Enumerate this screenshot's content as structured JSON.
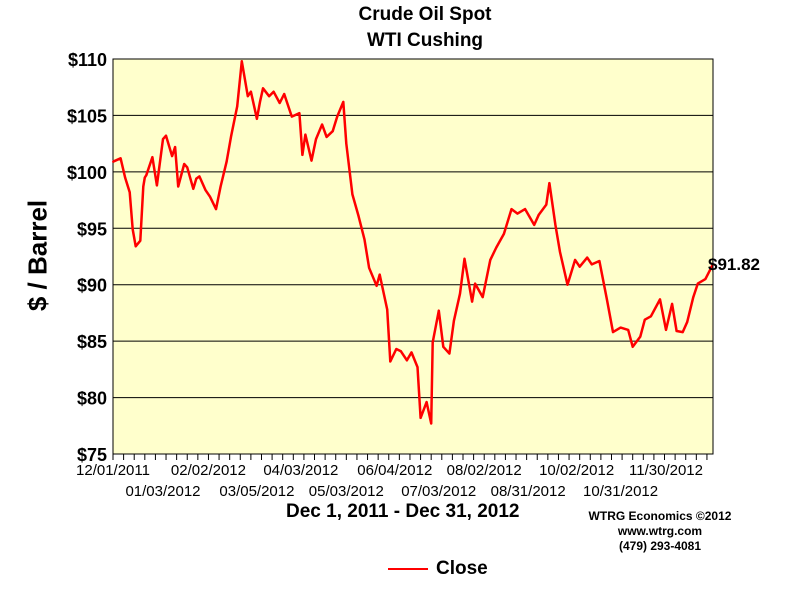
{
  "chart_data": {
    "type": "line",
    "title": "Crude Oil Spot",
    "subtitle": "WTI Cushing",
    "ylabel": "$ / Barrel",
    "date_range": "Dec 1, 2011 - Dec 31, 2012",
    "ylim": [
      75,
      110
    ],
    "yticks": [
      "$110",
      "$105",
      "$100",
      "$95",
      "$90",
      "$85",
      "$80",
      "$75"
    ],
    "ytick_values": [
      110,
      105,
      100,
      95,
      90,
      85,
      80,
      75
    ],
    "xlim": [
      "2011-12-01",
      "2012-12-31"
    ],
    "xticks_row1": [
      "12/01/2011",
      "02/02/2012",
      "04/03/2012",
      "06/04/2012",
      "08/02/2012",
      "10/02/2012",
      "11/30/2012"
    ],
    "xticks_row2": [
      "01/03/2012",
      "03/05/2012",
      "05/03/2012",
      "07/03/2012",
      "08/31/2012",
      "10/31/2012"
    ],
    "end_label": "$91.82",
    "grid": true,
    "background_color": "#ffffcc",
    "line_color": "#ff0000",
    "series": [
      {
        "name": "Close",
        "x": [
          "2011-12-01",
          "2011-12-06",
          "2011-12-09",
          "2011-12-12",
          "2011-12-14",
          "2011-12-16",
          "2011-12-19",
          "2011-12-21",
          "2011-12-22",
          "2011-12-23",
          "2011-12-27",
          "2011-12-30",
          "2012-01-03",
          "2012-01-05",
          "2012-01-09",
          "2012-01-11",
          "2012-01-13",
          "2012-01-17",
          "2012-01-19",
          "2012-01-23",
          "2012-01-25",
          "2012-01-27",
          "2012-01-31",
          "2012-02-03",
          "2012-02-07",
          "2012-02-10",
          "2012-02-14",
          "2012-02-17",
          "2012-02-21",
          "2012-02-24",
          "2012-02-28",
          "2012-03-01",
          "2012-03-05",
          "2012-03-07",
          "2012-03-09",
          "2012-03-13",
          "2012-03-16",
          "2012-03-20",
          "2012-03-23",
          "2012-03-28",
          "2012-04-02",
          "2012-04-04",
          "2012-04-06",
          "2012-04-10",
          "2012-04-13",
          "2012-04-17",
          "2012-04-20",
          "2012-04-24",
          "2012-04-27",
          "2012-05-01",
          "2012-05-03",
          "2012-05-07",
          "2012-05-11",
          "2012-05-15",
          "2012-05-18",
          "2012-05-23",
          "2012-05-25",
          "2012-05-30",
          "2012-06-01",
          "2012-06-05",
          "2012-06-08",
          "2012-06-12",
          "2012-06-15",
          "2012-06-19",
          "2012-06-21",
          "2012-06-25",
          "2012-06-28",
          "2012-06-29",
          "2012-07-03",
          "2012-07-06",
          "2012-07-10",
          "2012-07-13",
          "2012-07-17",
          "2012-07-20",
          "2012-07-25",
          "2012-07-27",
          "2012-08-01",
          "2012-08-06",
          "2012-08-10",
          "2012-08-15",
          "2012-08-20",
          "2012-08-24",
          "2012-08-29",
          "2012-09-04",
          "2012-09-07",
          "2012-09-12",
          "2012-09-14",
          "2012-09-18",
          "2012-09-21",
          "2012-09-26",
          "2012-10-01",
          "2012-10-04",
          "2012-10-09",
          "2012-10-12",
          "2012-10-17",
          "2012-10-22",
          "2012-10-26",
          "2012-10-31",
          "2012-11-05",
          "2012-11-08",
          "2012-11-13",
          "2012-11-16",
          "2012-11-20",
          "2012-11-26",
          "2012-11-30",
          "2012-12-04",
          "2012-12-07",
          "2012-12-11",
          "2012-12-14",
          "2012-12-18",
          "2012-12-21",
          "2012-12-26",
          "2012-12-31"
        ],
        "values": [
          100.9,
          101.2,
          99.5,
          98.2,
          94.9,
          93.4,
          93.9,
          98.7,
          99.5,
          99.7,
          101.3,
          98.8,
          102.9,
          103.2,
          101.4,
          102.2,
          98.7,
          100.7,
          100.4,
          98.5,
          99.4,
          99.6,
          98.4,
          97.8,
          96.7,
          98.7,
          100.9,
          103.2,
          105.8,
          109.8,
          106.7,
          107.1,
          104.7,
          106.2,
          107.4,
          106.7,
          107.1,
          106.1,
          106.9,
          104.9,
          105.2,
          101.5,
          103.3,
          101.0,
          102.9,
          104.2,
          103.1,
          103.6,
          104.9,
          106.2,
          102.5,
          98.0,
          96.1,
          94.0,
          91.5,
          89.9,
          90.9,
          87.8,
          83.2,
          84.3,
          84.1,
          83.3,
          84.0,
          82.7,
          78.2,
          79.6,
          77.7,
          84.9,
          87.7,
          84.5,
          83.9,
          86.8,
          89.2,
          92.3,
          88.5,
          90.1,
          88.9,
          92.2,
          93.3,
          94.5,
          96.7,
          96.3,
          96.7,
          95.3,
          96.2,
          97.1,
          99.0,
          95.3,
          92.9,
          90.0,
          92.2,
          91.6,
          92.4,
          91.8,
          92.1,
          88.7,
          85.8,
          86.2,
          86.0,
          84.5,
          85.4,
          86.9,
          87.2,
          88.7,
          86.0,
          88.3,
          85.9,
          85.8,
          86.7,
          88.9,
          90.1,
          90.5,
          91.82
        ]
      }
    ]
  },
  "credits": {
    "line1": "WTRG Economics  ©2012",
    "line2": "www.wtrg.com",
    "line3": "(479) 293-4081"
  }
}
